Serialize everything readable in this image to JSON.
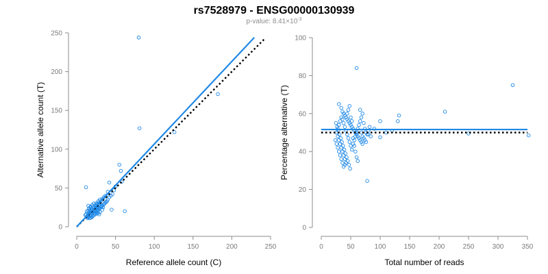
{
  "title": "rs7528979 - ENSG00000130939",
  "subtitle": {
    "prefix": "p-value: 8.41×10",
    "exponent": "-3"
  },
  "colors": {
    "points": "#1e88e5",
    "fit_line": "#1e88e5",
    "reference_line": "#000000",
    "axes": "#8c8c8c",
    "subtitle": "#8c8c8c"
  },
  "chart_data": [
    {
      "type": "scatter",
      "xlabel": "Reference allele count (C)",
      "ylabel": "Alternative allele count (T)",
      "xlim": [
        0,
        250
      ],
      "ylim": [
        0,
        250
      ],
      "xticks": [
        0,
        50,
        100,
        150,
        200,
        250
      ],
      "yticks": [
        0,
        50,
        100,
        150,
        200,
        250
      ],
      "grid": false,
      "fit_line": {
        "style": "solid",
        "points": [
          [
            0,
            0
          ],
          [
            229,
            244
          ]
        ]
      },
      "reference_line": {
        "style": "dotted",
        "points": [
          [
            0,
            0
          ],
          [
            242,
            242
          ]
        ]
      },
      "points": [
        [
          80,
          244
        ],
        [
          81,
          127
        ],
        [
          182,
          171
        ],
        [
          126,
          122
        ],
        [
          62,
          20
        ],
        [
          55,
          80
        ],
        [
          57,
          72
        ],
        [
          12,
          51
        ],
        [
          42,
          57
        ],
        [
          58,
          58
        ],
        [
          40,
          45
        ],
        [
          37,
          40
        ],
        [
          35,
          38
        ],
        [
          33,
          36
        ],
        [
          32,
          34
        ],
        [
          30,
          35
        ],
        [
          28,
          31
        ],
        [
          27,
          28
        ],
        [
          26,
          26
        ],
        [
          25,
          24
        ],
        [
          24,
          22
        ],
        [
          23,
          22
        ],
        [
          22,
          21
        ],
        [
          21,
          20
        ],
        [
          20,
          19
        ],
        [
          19,
          20
        ],
        [
          18,
          19
        ],
        [
          17,
          18
        ],
        [
          16,
          17
        ],
        [
          15,
          15
        ],
        [
          14,
          14
        ],
        [
          13,
          13
        ],
        [
          14,
          18
        ],
        [
          15,
          21
        ],
        [
          16,
          24
        ],
        [
          18,
          26
        ],
        [
          20,
          28
        ],
        [
          22,
          30
        ],
        [
          24,
          27
        ],
        [
          26,
          29
        ],
        [
          28,
          33
        ],
        [
          30,
          31
        ],
        [
          32,
          27
        ],
        [
          34,
          25
        ],
        [
          36,
          30
        ],
        [
          38,
          32
        ],
        [
          40,
          35
        ],
        [
          42,
          38
        ],
        [
          44,
          40
        ],
        [
          46,
          42
        ],
        [
          18,
          14
        ],
        [
          20,
          13
        ],
        [
          22,
          15
        ],
        [
          24,
          16
        ],
        [
          26,
          17
        ],
        [
          28,
          18
        ],
        [
          30,
          19
        ],
        [
          13,
          20
        ],
        [
          15,
          12
        ],
        [
          17,
          11
        ],
        [
          19,
          12
        ],
        [
          21,
          14
        ],
        [
          23,
          17
        ],
        [
          25,
          19
        ],
        [
          27,
          21
        ],
        [
          29,
          23
        ],
        [
          31,
          25
        ],
        [
          33,
          27
        ],
        [
          35,
          29
        ],
        [
          37,
          31
        ],
        [
          39,
          33
        ],
        [
          16,
          23
        ],
        [
          18,
          25
        ],
        [
          20,
          22
        ],
        [
          22,
          24
        ],
        [
          24,
          26
        ],
        [
          26,
          23
        ],
        [
          28,
          25
        ],
        [
          12,
          16
        ],
        [
          11,
          15
        ],
        [
          14,
          11
        ],
        [
          16,
          13
        ],
        [
          18,
          15
        ],
        [
          20,
          17
        ],
        [
          22,
          19
        ],
        [
          24,
          21
        ],
        [
          26,
          20
        ],
        [
          28,
          22
        ],
        [
          30,
          24
        ],
        [
          32,
          26
        ],
        [
          45,
          22
        ],
        [
          48,
          47
        ],
        [
          50,
          52
        ],
        [
          15,
          27
        ],
        [
          21,
          26
        ],
        [
          33,
          22
        ],
        [
          29,
          16
        ],
        [
          25,
          30
        ],
        [
          19,
          23
        ],
        [
          17,
          20
        ]
      ]
    },
    {
      "type": "scatter",
      "xlabel": "Total number of reads",
      "ylabel": "Percentage alternative (T)",
      "xlim": [
        0,
        350
      ],
      "ylim": [
        0,
        100
      ],
      "xticks": [
        0,
        50,
        100,
        150,
        200,
        250,
        300,
        350
      ],
      "yticks": [
        0,
        20,
        40,
        60,
        80,
        100
      ],
      "grid": false,
      "fit_line": {
        "style": "solid",
        "y": 51.6,
        "x_range": [
          0,
          350
        ]
      },
      "reference_line": {
        "style": "dotted",
        "y": 50,
        "x_range": [
          0,
          350
        ]
      },
      "points": [
        [
          60,
          84
        ],
        [
          325,
          75
        ],
        [
          210,
          61
        ],
        [
          132,
          59
        ],
        [
          130,
          56
        ],
        [
          100,
          56
        ],
        [
          78,
          24.5
        ],
        [
          250,
          49.5
        ],
        [
          352,
          48.5
        ],
        [
          100,
          47.5
        ],
        [
          30,
          65
        ],
        [
          34,
          63
        ],
        [
          36,
          61
        ],
        [
          38,
          60
        ],
        [
          40,
          59
        ],
        [
          42,
          58
        ],
        [
          44,
          57
        ],
        [
          46,
          56
        ],
        [
          48,
          55
        ],
        [
          50,
          54
        ],
        [
          52,
          53
        ],
        [
          54,
          52
        ],
        [
          56,
          51
        ],
        [
          58,
          50
        ],
        [
          60,
          49
        ],
        [
          62,
          48
        ],
        [
          64,
          47
        ],
        [
          66,
          46
        ],
        [
          68,
          45
        ],
        [
          70,
          44
        ],
        [
          25,
          55
        ],
        [
          27,
          53
        ],
        [
          29,
          51
        ],
        [
          31,
          49
        ],
        [
          33,
          47
        ],
        [
          35,
          45
        ],
        [
          37,
          43
        ],
        [
          39,
          41
        ],
        [
          41,
          39
        ],
        [
          43,
          37
        ],
        [
          45,
          35
        ],
        [
          47,
          33
        ],
        [
          49,
          31
        ],
        [
          28,
          42
        ],
        [
          30,
          40
        ],
        [
          32,
          38
        ],
        [
          34,
          36
        ],
        [
          36,
          34
        ],
        [
          38,
          32
        ],
        [
          40,
          33
        ],
        [
          26,
          50
        ],
        [
          28,
          52
        ],
        [
          30,
          54
        ],
        [
          32,
          56
        ],
        [
          34,
          58
        ],
        [
          36,
          57
        ],
        [
          38,
          55
        ],
        [
          40,
          53
        ],
        [
          42,
          51
        ],
        [
          44,
          49
        ],
        [
          46,
          47
        ],
        [
          48,
          45
        ],
        [
          50,
          43
        ],
        [
          52,
          41
        ],
        [
          54,
          44
        ],
        [
          56,
          46
        ],
        [
          58,
          48
        ],
        [
          60,
          50
        ],
        [
          62,
          52
        ],
        [
          64,
          54
        ],
        [
          66,
          56
        ],
        [
          68,
          58
        ],
        [
          70,
          60
        ],
        [
          72,
          55
        ],
        [
          74,
          52
        ],
        [
          76,
          50
        ],
        [
          78,
          49
        ],
        [
          80,
          51
        ],
        [
          82,
          53
        ],
        [
          84,
          48
        ],
        [
          24,
          46
        ],
        [
          26,
          44
        ],
        [
          28,
          48
        ],
        [
          30,
          46
        ],
        [
          32,
          44
        ],
        [
          34,
          42
        ],
        [
          36,
          40
        ],
        [
          38,
          38
        ],
        [
          40,
          36
        ],
        [
          42,
          34
        ],
        [
          44,
          60
        ],
        [
          46,
          62
        ],
        [
          48,
          64
        ],
        [
          50,
          58
        ],
        [
          52,
          56
        ],
        [
          54,
          47
        ],
        [
          56,
          43
        ],
        [
          58,
          40
        ],
        [
          60,
          37
        ],
        [
          62,
          35
        ],
        [
          66,
          62
        ],
        [
          68,
          50
        ],
        [
          70,
          48
        ],
        [
          72,
          47
        ],
        [
          74,
          46
        ],
        [
          76,
          45
        ],
        [
          80,
          49
        ],
        [
          90,
          52
        ],
        [
          110,
          50
        ],
        [
          120,
          51
        ]
      ]
    }
  ]
}
